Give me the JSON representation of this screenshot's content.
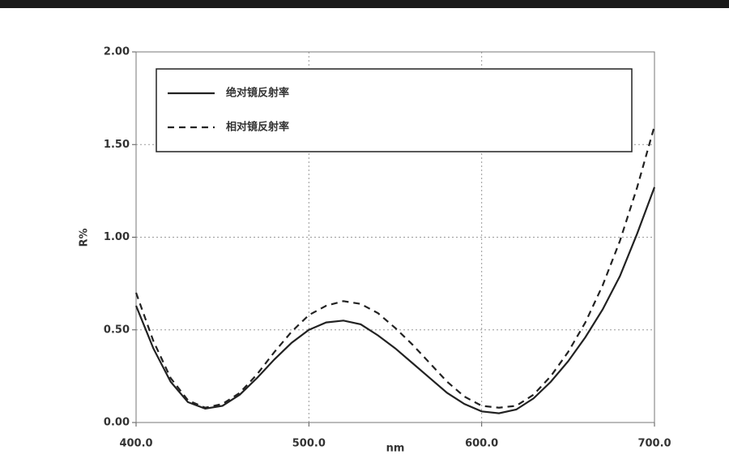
{
  "chart_data": {
    "type": "line",
    "xlabel": "nm",
    "ylabel": "R%",
    "x": [
      400,
      410,
      420,
      430,
      440,
      450,
      460,
      470,
      480,
      490,
      500,
      510,
      520,
      530,
      540,
      550,
      560,
      570,
      580,
      590,
      600,
      610,
      620,
      630,
      640,
      650,
      660,
      670,
      680,
      690,
      700
    ],
    "series": [
      {
        "name": "绝对镜反射率",
        "color": "#222222",
        "linestyle": "solid",
        "values": [
          0.63,
          0.4,
          0.22,
          0.11,
          0.075,
          0.09,
          0.15,
          0.24,
          0.34,
          0.43,
          0.5,
          0.54,
          0.55,
          0.53,
          0.47,
          0.4,
          0.32,
          0.24,
          0.16,
          0.1,
          0.06,
          0.05,
          0.07,
          0.13,
          0.22,
          0.33,
          0.46,
          0.61,
          0.79,
          1.02,
          1.27
        ]
      },
      {
        "name": "相对镜反射率",
        "color": "#222222",
        "linestyle": "dashed",
        "values": [
          0.7,
          0.44,
          0.24,
          0.12,
          0.08,
          0.1,
          0.16,
          0.26,
          0.38,
          0.49,
          0.58,
          0.63,
          0.655,
          0.64,
          0.59,
          0.51,
          0.42,
          0.32,
          0.22,
          0.14,
          0.09,
          0.08,
          0.09,
          0.15,
          0.25,
          0.38,
          0.54,
          0.74,
          0.98,
          1.27,
          1.6
        ]
      }
    ],
    "xlim": [
      400,
      700
    ],
    "xticks": [
      {
        "value": 400,
        "label": "400.0"
      },
      {
        "value": 500,
        "label": "500.0"
      },
      {
        "value": 600,
        "label": "600.0"
      },
      {
        "value": 700,
        "label": "700.0"
      }
    ],
    "ylim": [
      0,
      2
    ],
    "yticks": [
      {
        "value": 0,
        "label": "0.00"
      },
      {
        "value": 0.5,
        "label": "0.50"
      },
      {
        "value": 1,
        "label": "1.00"
      },
      {
        "value": 1.5,
        "label": "1.50"
      },
      {
        "value": 2,
        "label": "2.00"
      }
    ],
    "grid": true,
    "legend": "upper left"
  }
}
